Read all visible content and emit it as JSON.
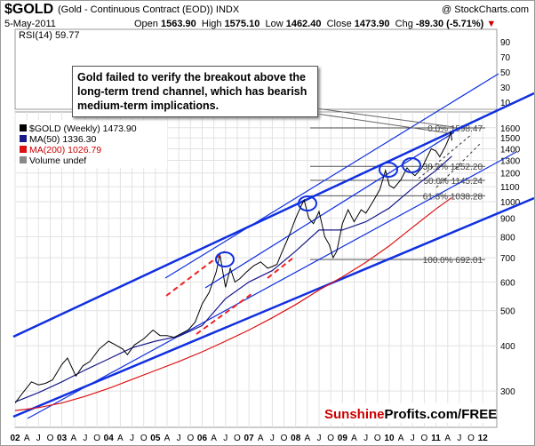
{
  "header": {
    "symbol": "$GOLD",
    "description": "(Gold - Continuous Contract (EOD)) INDX",
    "brand": "@ StockCharts.com",
    "date": "5-May-2011",
    "open_label": "Open",
    "open": "1563.90",
    "high_label": "High",
    "high": "1575.10",
    "low_label": "Low",
    "low": "1462.40",
    "close_label": "Close",
    "close": "1473.90",
    "chg_label": "Chg",
    "chg": "-89.30 (-5.71%)",
    "chg_arrow": "▼"
  },
  "rsi_panel": {
    "label": "RSI(14) 59.77",
    "ticks": [
      "90",
      "70",
      "50",
      "30",
      "10"
    ]
  },
  "annotation": "Gold failed to verify the breakout above the long-term trend channel, which has bearish medium-term implications.",
  "watermark": {
    "part1": "Sunshine",
    "part2": "Profits.com/FREE"
  },
  "colors": {
    "price": "#000000",
    "ma50": "#1a1a8c",
    "ma200": "#dd1111",
    "trend": "#1030e0",
    "dashed": "#ee2222",
    "fib": "#555555",
    "watermark_red": "#cc0000"
  },
  "chart_data": {
    "type": "line",
    "yscale": "log",
    "ylim": [
      245,
      1720
    ],
    "xlim": [
      2002.0,
      2012.3
    ],
    "legend": [
      {
        "label": "$GOLD (Weekly) 1473.90",
        "color": "#000000"
      },
      {
        "label": "MA(50) 1336.30",
        "color": "#1a1a8c"
      },
      {
        "label": "MA(200) 1026.79",
        "color": "#dd1111"
      },
      {
        "label": "Volume undef",
        "color": "#888888"
      }
    ],
    "y_ticks": [
      300,
      400,
      500,
      600,
      700,
      800,
      900,
      1000,
      1100,
      1200,
      1300,
      1400,
      1500,
      1600
    ],
    "x_ticks": [
      {
        "t": 2002.0,
        "l": "02"
      },
      {
        "t": 2002.25,
        "l": "A"
      },
      {
        "t": 2002.5,
        "l": "J"
      },
      {
        "t": 2002.75,
        "l": "O"
      },
      {
        "t": 2003.0,
        "l": "03"
      },
      {
        "t": 2003.25,
        "l": "A"
      },
      {
        "t": 2003.5,
        "l": "J"
      },
      {
        "t": 2003.75,
        "l": "O"
      },
      {
        "t": 2004.0,
        "l": "04"
      },
      {
        "t": 2004.25,
        "l": "A"
      },
      {
        "t": 2004.5,
        "l": "J"
      },
      {
        "t": 2004.75,
        "l": "O"
      },
      {
        "t": 2005.0,
        "l": "05"
      },
      {
        "t": 2005.25,
        "l": "A"
      },
      {
        "t": 2005.5,
        "l": "J"
      },
      {
        "t": 2005.75,
        "l": "O"
      },
      {
        "t": 2006.0,
        "l": "06"
      },
      {
        "t": 2006.25,
        "l": "A"
      },
      {
        "t": 2006.5,
        "l": "J"
      },
      {
        "t": 2006.75,
        "l": "O"
      },
      {
        "t": 2007.0,
        "l": "07"
      },
      {
        "t": 2007.25,
        "l": "A"
      },
      {
        "t": 2007.5,
        "l": "J"
      },
      {
        "t": 2007.75,
        "l": "O"
      },
      {
        "t": 2008.0,
        "l": "08"
      },
      {
        "t": 2008.25,
        "l": "A"
      },
      {
        "t": 2008.5,
        "l": "J"
      },
      {
        "t": 2008.75,
        "l": "O"
      },
      {
        "t": 2009.0,
        "l": "09"
      },
      {
        "t": 2009.25,
        "l": "A"
      },
      {
        "t": 2009.5,
        "l": "J"
      },
      {
        "t": 2009.75,
        "l": "O"
      },
      {
        "t": 2010.0,
        "l": "10"
      },
      {
        "t": 2010.25,
        "l": "A"
      },
      {
        "t": 2010.5,
        "l": "J"
      },
      {
        "t": 2010.75,
        "l": "O"
      },
      {
        "t": 2011.0,
        "l": "11"
      },
      {
        "t": 2011.25,
        "l": "A"
      },
      {
        "t": 2011.5,
        "l": "J"
      },
      {
        "t": 2011.75,
        "l": "O"
      },
      {
        "t": 2012.0,
        "l": "12"
      }
    ],
    "fib_levels": [
      {
        "label": "0.0% 1598.47",
        "value": 1598.47
      },
      {
        "label": "38.2% 1252.20",
        "value": 1252.2
      },
      {
        "label": "50.0% 1145.24",
        "value": 1145.24
      },
      {
        "label": "61.8% 1038.28",
        "value": 1038.28
      },
      {
        "label": "100.0% 692.01",
        "value": 692.01
      }
    ],
    "price": [
      [
        2002.0,
        278
      ],
      [
        2002.15,
        295
      ],
      [
        2002.35,
        318
      ],
      [
        2002.5,
        312
      ],
      [
        2002.65,
        315
      ],
      [
        2002.8,
        322
      ],
      [
        2003.0,
        355
      ],
      [
        2003.12,
        370
      ],
      [
        2003.3,
        330
      ],
      [
        2003.45,
        352
      ],
      [
        2003.6,
        362
      ],
      [
        2003.8,
        392
      ],
      [
        2004.0,
        412
      ],
      [
        2004.15,
        402
      ],
      [
        2004.3,
        392
      ],
      [
        2004.4,
        378
      ],
      [
        2004.55,
        402
      ],
      [
        2004.75,
        418
      ],
      [
        2004.95,
        442
      ],
      [
        2005.1,
        427
      ],
      [
        2005.25,
        427
      ],
      [
        2005.4,
        422
      ],
      [
        2005.55,
        432
      ],
      [
        2005.7,
        442
      ],
      [
        2005.85,
        465
      ],
      [
        2006.0,
        522
      ],
      [
        2006.15,
        562
      ],
      [
        2006.3,
        640
      ],
      [
        2006.38,
        715
      ],
      [
        2006.45,
        630
      ],
      [
        2006.5,
        580
      ],
      [
        2006.6,
        655
      ],
      [
        2006.7,
        600
      ],
      [
        2006.8,
        612
      ],
      [
        2006.95,
        640
      ],
      [
        2007.1,
        665
      ],
      [
        2007.25,
        682
      ],
      [
        2007.4,
        655
      ],
      [
        2007.5,
        662
      ],
      [
        2007.6,
        672
      ],
      [
        2007.7,
        722
      ],
      [
        2007.85,
        800
      ],
      [
        2008.0,
        900
      ],
      [
        2008.12,
        975
      ],
      [
        2008.18,
        1010
      ],
      [
        2008.28,
        900
      ],
      [
        2008.38,
        870
      ],
      [
        2008.5,
        940
      ],
      [
        2008.62,
        800
      ],
      [
        2008.72,
        760
      ],
      [
        2008.8,
        700
      ],
      [
        2008.88,
        730
      ],
      [
        2009.0,
        870
      ],
      [
        2009.12,
        950
      ],
      [
        2009.25,
        880
      ],
      [
        2009.4,
        950
      ],
      [
        2009.5,
        930
      ],
      [
        2009.65,
        1000
      ],
      [
        2009.8,
        1080
      ],
      [
        2009.92,
        1220
      ],
      [
        2010.0,
        1110
      ],
      [
        2010.1,
        1090
      ],
      [
        2010.25,
        1150
      ],
      [
        2010.38,
        1240
      ],
      [
        2010.45,
        1210
      ],
      [
        2010.55,
        1180
      ],
      [
        2010.7,
        1240
      ],
      [
        2010.8,
        1320
      ],
      [
        2010.9,
        1400
      ],
      [
        2011.0,
        1380
      ],
      [
        2011.08,
        1330
      ],
      [
        2011.2,
        1420
      ],
      [
        2011.28,
        1500
      ],
      [
        2011.32,
        1560
      ],
      [
        2011.34,
        1474
      ]
    ],
    "ma50": [
      [
        2002.0,
        280
      ],
      [
        2002.5,
        297
      ],
      [
        2003.0,
        318
      ],
      [
        2003.5,
        343
      ],
      [
        2004.0,
        368
      ],
      [
        2004.5,
        395
      ],
      [
        2005.0,
        412
      ],
      [
        2005.5,
        425
      ],
      [
        2006.0,
        455
      ],
      [
        2006.5,
        540
      ],
      [
        2007.0,
        600
      ],
      [
        2007.5,
        645
      ],
      [
        2008.0,
        730
      ],
      [
        2008.5,
        835
      ],
      [
        2009.0,
        835
      ],
      [
        2009.5,
        880
      ],
      [
        2010.0,
        960
      ],
      [
        2010.5,
        1090
      ],
      [
        2011.0,
        1220
      ],
      [
        2011.34,
        1336
      ]
    ],
    "ma200": [
      [
        2002.0,
        265
      ],
      [
        2002.5,
        270
      ],
      [
        2003.0,
        278
      ],
      [
        2003.5,
        290
      ],
      [
        2004.0,
        305
      ],
      [
        2004.5,
        323
      ],
      [
        2005.0,
        342
      ],
      [
        2005.5,
        362
      ],
      [
        2006.0,
        385
      ],
      [
        2006.5,
        412
      ],
      [
        2007.0,
        442
      ],
      [
        2007.5,
        478
      ],
      [
        2008.0,
        520
      ],
      [
        2008.5,
        570
      ],
      [
        2009.0,
        620
      ],
      [
        2009.5,
        680
      ],
      [
        2010.0,
        755
      ],
      [
        2010.5,
        850
      ],
      [
        2011.0,
        955
      ],
      [
        2011.34,
        1027
      ]
    ]
  }
}
